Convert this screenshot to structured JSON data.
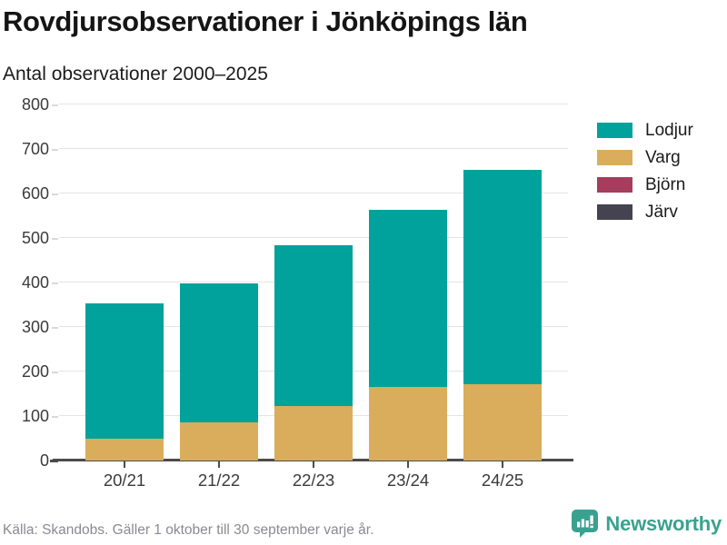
{
  "header": {
    "title": "Rovdjursobservationer i Jönköpings län",
    "subtitle": "Antal observationer 2000–2025"
  },
  "chart_data": {
    "type": "bar",
    "stacked": true,
    "categories": [
      "20/21",
      "21/22",
      "22/23",
      "23/24",
      "24/25"
    ],
    "series": [
      {
        "name": "Lodjur",
        "color": "#00a29b",
        "values": [
          305,
          312,
          361,
          398,
          481
        ]
      },
      {
        "name": "Varg",
        "color": "#d9ad5b",
        "values": [
          48,
          85,
          122,
          165,
          172
        ]
      },
      {
        "name": "Björn",
        "color": "#a63d5e",
        "values": [
          0,
          0,
          0,
          0,
          0
        ]
      },
      {
        "name": "Järv",
        "color": "#44434f",
        "values": [
          0,
          0,
          0,
          0,
          0
        ]
      }
    ],
    "totals": [
      353,
      397,
      483,
      563,
      653
    ],
    "ylim": [
      0,
      800
    ],
    "yticks": [
      0,
      100,
      200,
      300,
      400,
      500,
      600,
      700,
      800
    ],
    "grid": true,
    "legend_position": "right",
    "gridline_color": "#e4e4e4",
    "axis_color": "#4b4b4d"
  },
  "footer": {
    "source": "Källa: Skandobs. Gäller 1 oktober till 30 september varje år.",
    "brand": "Newsworthy",
    "brand_color": "#3aa190"
  }
}
